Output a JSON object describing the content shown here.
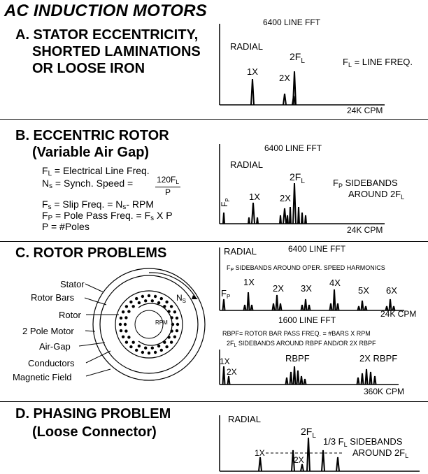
{
  "title": "AC INDUCTION MOTORS",
  "sections": {
    "a": {
      "line1": "A. STATOR  ECCENTRICITY,",
      "line2": "SHORTED LAMINATIONS",
      "line3": "OR LOOSE IRON",
      "fft": "6400 LINE FFT",
      "radial": "RADIAL",
      "oneX": "1X",
      "twoX": "2X",
      "twoFL": "2F",
      "twoFL_sub": "L",
      "fl_note_a": "F",
      "fl_note_sub": "L",
      "fl_note_b": " = LINE FREQ.",
      "xmax": "24K CPM"
    },
    "b": {
      "line1": "B. ECCENTRIC ROTOR",
      "line2": "(Variable Air Gap)",
      "f1a": "F",
      "f1s": "L",
      "f1b": " = Electrical Line Freq.",
      "f2a": "N",
      "f2s": "s",
      "f2b": " = Synch. Speed = ",
      "frac_num": "120F",
      "frac_num_sub": "L",
      "frac_den": "P",
      "f3a": "F",
      "f3s": "s",
      "f3b": " = Slip Freq. = N",
      "f3s2": "s",
      "f3c": "- RPM",
      "f4a": "F",
      "f4s": "P",
      "f4b": " = Pole Pass Freq. = F",
      "f4s2": "s",
      "f4c": " X P",
      "f5": "P   = #Poles",
      "fft": "6400 LINE FFT",
      "radial": "RADIAL",
      "oneX": "1X",
      "twoX": "2X",
      "twoFL": "2F",
      "twoFL_sub": "L",
      "fp": "F",
      "fp_sub": "P",
      "sb1a": "F",
      "sb1s": "P",
      "sb1b": " SIDEBANDS",
      "sb2a": "AROUND 2F",
      "sb2s": "L",
      "xmax": "24K CPM"
    },
    "c": {
      "line1": "C. ROTOR PROBLEMS",
      "labels": [
        "Stator",
        "Rotor Bars",
        "Rotor",
        "2 Pole Motor",
        "Air-Gap",
        "Conductors",
        "Magnetic Field"
      ],
      "ns": "N",
      "ns_sub": "S",
      "rpm": "RPM",
      "radial": "RADIAL",
      "fft": "6400 LINE FFT",
      "sb_note_a": "F",
      "sb_note_s": "P",
      "sb_note_b": " SIDEBANDS AROUND OPER. SPEED HARMONICS",
      "fp": "F",
      "fp_sub": "P",
      "harmonics": [
        "1X",
        "2X",
        "3X",
        "4X",
        "5X",
        "6X"
      ],
      "xmax1": "24K CPM",
      "fft2": "1600 LINE FFT",
      "rbpf_note": "RBPF= ROTOR BAR PASS FREQ. = #BARS X RPM",
      "rbpf_note2a": "2F",
      "rbpf_note2s": "L",
      "rbpf_note2b": " SIDEBANDS AROUND RBPF AND/OR 2X RBPF",
      "oneX": "1X",
      "twoX": "2X",
      "rbpf": "RBPF",
      "two_rbpf": "2X RBPF",
      "xmax2": "360K CPM"
    },
    "d": {
      "line1": "D. PHASING PROBLEM",
      "line2": "(Loose Connector)",
      "radial": "RADIAL",
      "twoFL": "2F",
      "twoFL_sub": "L",
      "oneX": "1X",
      "twoX": "2X",
      "sb1a": "1/3 F",
      "sb1s": "L",
      "sb1b": " SIDEBANDS",
      "sb2a": "AROUND 2F",
      "sb2s": "L"
    }
  }
}
